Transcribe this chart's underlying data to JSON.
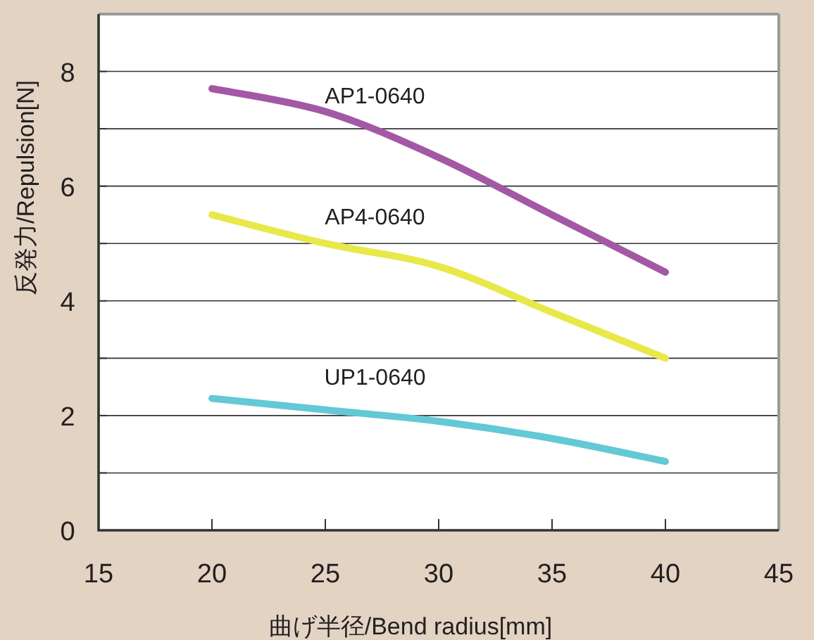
{
  "chart_data": {
    "type": "line",
    "xlabel": "曲げ半径/Bend radius[mm]",
    "ylabel": "反発力/Repulsion[N]",
    "x": [
      20,
      25,
      30,
      35,
      40
    ],
    "series": [
      {
        "name": "AP1-0640",
        "color": "#a358a5",
        "values": [
          7.7,
          7.3,
          6.5,
          5.5,
          4.5
        ]
      },
      {
        "name": "AP4-0640",
        "color": "#e8e84a",
        "values": [
          5.5,
          5.0,
          4.6,
          3.8,
          3.0
        ]
      },
      {
        "name": "UP1-0640",
        "color": "#63c9d4",
        "values": [
          2.3,
          2.1,
          1.9,
          1.6,
          1.2
        ]
      }
    ],
    "xlim": [
      15,
      45
    ],
    "xticks": [
      15,
      20,
      25,
      30,
      35,
      40,
      45
    ],
    "ylim": [
      0,
      9
    ],
    "yticks": [
      0,
      {
        "value": 1,
        "label": null
      },
      2,
      {
        "value": 3,
        "label": null
      },
      4,
      {
        "value": 5,
        "label": null
      },
      6,
      {
        "value": 7,
        "label": null
      },
      8
    ],
    "grid": "y",
    "marker": "none",
    "line_style": "solid"
  }
}
